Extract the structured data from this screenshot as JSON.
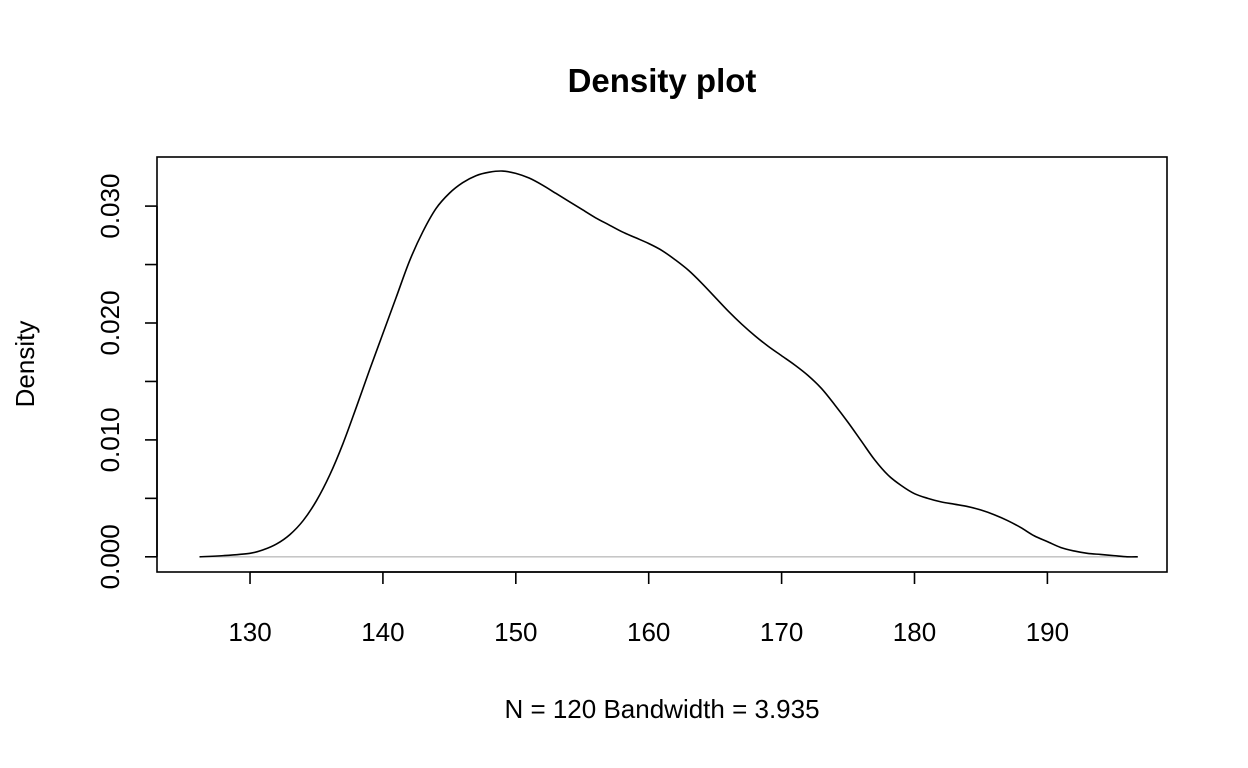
{
  "chart_data": {
    "type": "line",
    "title": "Density plot",
    "xlabel": "N = 120   Bandwidth = 3.935",
    "ylabel": "Density",
    "xlim": [
      123,
      199
    ],
    "ylim": [
      -0.0013,
      0.0342
    ],
    "x_ticks": [
      130,
      140,
      150,
      160,
      170,
      180,
      190
    ],
    "x_tick_labels": [
      "130",
      "140",
      "150",
      "160",
      "170",
      "180",
      "190"
    ],
    "y_ticks": [
      0.0,
      0.005,
      0.01,
      0.015,
      0.02,
      0.025,
      0.03
    ],
    "y_tick_labels": [
      "0.000",
      "",
      "0.010",
      "",
      "0.020",
      "",
      "0.030"
    ],
    "grid": false,
    "baseline": 0,
    "series": [
      {
        "x": [
          126.2,
          128,
          130,
          131,
          132,
          133,
          134,
          135,
          136,
          137,
          138,
          139,
          140,
          141,
          142,
          143,
          144,
          145,
          146,
          147,
          148,
          149,
          150,
          151,
          152,
          153,
          154,
          155,
          156,
          157,
          158,
          159,
          160,
          161,
          162,
          163,
          164,
          165,
          166,
          167,
          168,
          169,
          170,
          171,
          172,
          173,
          174,
          175,
          176,
          177,
          178,
          179,
          180,
          181,
          182,
          183,
          184,
          185,
          186,
          187,
          188,
          189,
          190,
          191,
          192,
          193,
          194,
          195,
          196,
          196.8
        ],
        "y": [
          0.0,
          0.0001,
          0.0003,
          0.0006,
          0.0011,
          0.0019,
          0.0031,
          0.0048,
          0.007,
          0.0097,
          0.0128,
          0.016,
          0.0191,
          0.0222,
          0.0253,
          0.0278,
          0.0298,
          0.0311,
          0.032,
          0.0326,
          0.0329,
          0.033,
          0.0328,
          0.0324,
          0.0318,
          0.0311,
          0.0304,
          0.0297,
          0.029,
          0.0284,
          0.0278,
          0.0273,
          0.0268,
          0.0262,
          0.0254,
          0.0245,
          0.0234,
          0.0222,
          0.021,
          0.0199,
          0.0189,
          0.018,
          0.0172,
          0.0164,
          0.0155,
          0.0144,
          0.013,
          0.0115,
          0.0099,
          0.0083,
          0.007,
          0.0061,
          0.0054,
          0.005,
          0.0047,
          0.0045,
          0.0043,
          0.004,
          0.0036,
          0.0031,
          0.0025,
          0.0018,
          0.0013,
          0.0008,
          0.0005,
          0.0003,
          0.0002,
          0.0001,
          0.0,
          0.0
        ]
      }
    ]
  }
}
